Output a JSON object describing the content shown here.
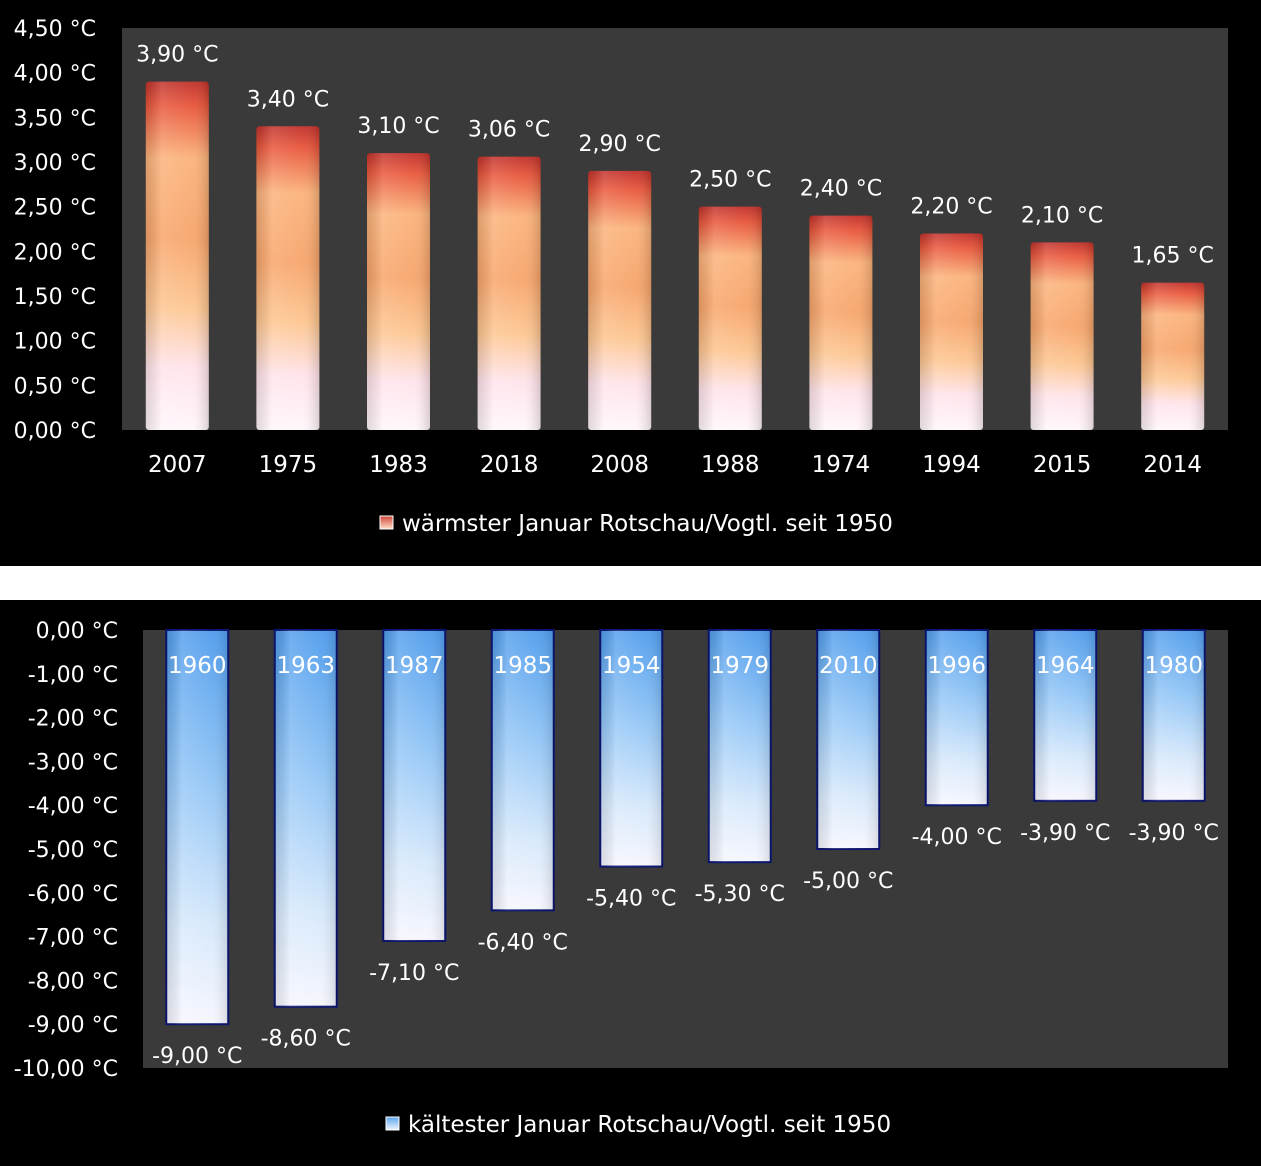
{
  "colors": {
    "page_bg": "#ffffff",
    "panel_bg": "#000000",
    "plot_bg": "#3a3a3a",
    "text": "#ffffff",
    "warm_top": "#c0302a",
    "warm_mid": "#f7a46a",
    "warm_bottom": "#fff2f8",
    "cold_top": "#5aa5ee",
    "cold_bottom": "#f4f5fd",
    "cold_border": "#0b1470"
  },
  "chart_data": [
    {
      "type": "bar",
      "categories": [
        "2007",
        "1975",
        "1983",
        "2018",
        "2008",
        "1988",
        "1974",
        "1994",
        "2015",
        "2014"
      ],
      "values": [
        3.9,
        3.4,
        3.1,
        3.06,
        2.9,
        2.5,
        2.4,
        2.2,
        2.1,
        1.65
      ],
      "data_labels": [
        "3,90 °C",
        "3,40 °C",
        "3,10 °C",
        "3,06 °C",
        "2,90 °C",
        "2,50 °C",
        "2,40 °C",
        "2,20 °C",
        "2,10 °C",
        "1,65 °C"
      ],
      "ylim": [
        0,
        4.5
      ],
      "yticks": [
        "0,00 °C",
        "0,50 °C",
        "1,00 °C",
        "1,50 °C",
        "2,00 °C",
        "2,50 °C",
        "3,00 °C",
        "3,50 °C",
        "4,00 °C",
        "4,50 °C"
      ],
      "legend": "wärmster Januar Rotschau/Vogtl. seit 1950",
      "legend_position": "bottom",
      "grid": false
    },
    {
      "type": "bar",
      "categories": [
        "1960",
        "1963",
        "1987",
        "1985",
        "1954",
        "1979",
        "2010",
        "1996",
        "1964",
        "1980"
      ],
      "values": [
        -9.0,
        -8.6,
        -7.1,
        -6.4,
        -5.4,
        -5.3,
        -5.0,
        -4.0,
        -3.9,
        -3.9
      ],
      "data_labels": [
        "-9,00 °C",
        "-8,60 °C",
        "-7,10 °C",
        "-6,40 °C",
        "-5,40 °C",
        "-5,30 °C",
        "-5,00 °C",
        "-4,00 °C",
        "-3,90 °C",
        "-3,90 °C"
      ],
      "ylim": [
        -10,
        0
      ],
      "yticks": [
        "0,00 °C",
        "-1,00 °C",
        "-2,00 °C",
        "-3,00 °C",
        "-4,00 °C",
        "-5,00 °C",
        "-6,00 °C",
        "-7,00 °C",
        "-8,00 °C",
        "-9,00 °C",
        "-10,00 °C"
      ],
      "legend": "kältester Januar Rotschau/Vogtl. seit 1950",
      "legend_position": "bottom",
      "grid": false
    }
  ]
}
